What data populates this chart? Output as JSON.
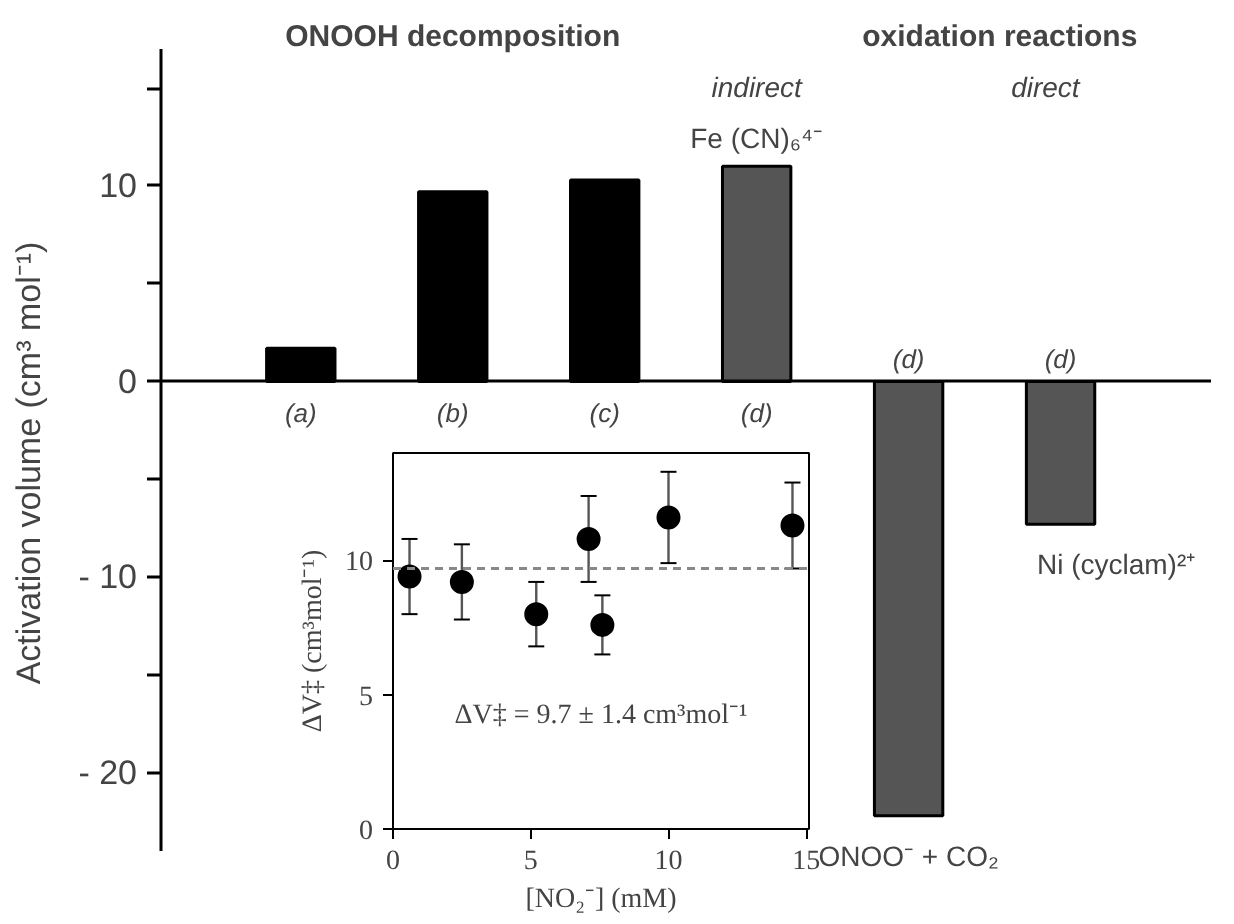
{
  "chart_data": [
    {
      "type": "bar",
      "ylabel": "Activation volume (cm³ mol⁻¹)",
      "categories": [
        "(a)",
        "(b)",
        "(c)",
        "(d)",
        "(d)",
        "(d)"
      ],
      "values": [
        1.7,
        9.7,
        10.3,
        11.0,
        -22.2,
        -7.3
      ],
      "colors": [
        "#000000",
        "#000000",
        "#000000",
        "#555555",
        "#555555",
        "#555555"
      ],
      "ylim": [
        -24,
        17
      ],
      "yticks": [
        {
          "value": -20,
          "label": "- 20"
        },
        {
          "value": -15,
          "label": null
        },
        {
          "value": -10,
          "label": "- 10"
        },
        {
          "value": -5,
          "label": null
        },
        0,
        {
          "value": 5,
          "label": null
        },
        10,
        {
          "value": 15,
          "label": null
        }
      ],
      "grid": false,
      "annotations": [
        "ONOOH decomposition",
        "oxidation reactions",
        "indirect",
        "direct",
        "Fe (CN)₆⁴⁻",
        "ONOO⁻ + CO₂",
        "Ni (cyclam)²⁺"
      ]
    },
    {
      "type": "scatter",
      "xlabel": "[NO₂⁻] (mM)",
      "ylabel": "ΔV‡ (cm³mol⁻¹)",
      "x": [
        0.6,
        2.5,
        5.2,
        7.1,
        7.6,
        10.0,
        14.5
      ],
      "values": [
        9.4,
        9.2,
        8.0,
        10.8,
        7.6,
        11.6,
        11.3
      ],
      "errors": [
        1.4,
        1.4,
        1.2,
        1.6,
        1.1,
        1.7,
        1.6
      ],
      "color": "#000000",
      "marker": "circle",
      "xlim": [
        0,
        15.1
      ],
      "ylim": [
        0,
        14
      ],
      "xticks": [
        0,
        5,
        10,
        15
      ],
      "yticks": [
        0,
        5,
        10
      ],
      "ref_lines": [
        {
          "axis": "y",
          "value": 9.7,
          "color": "#888888",
          "line_style": "dashed"
        }
      ],
      "annotations": [
        "ΔV‡ = 9.7 ± 1.4 cm³mol⁻¹"
      ]
    }
  ]
}
